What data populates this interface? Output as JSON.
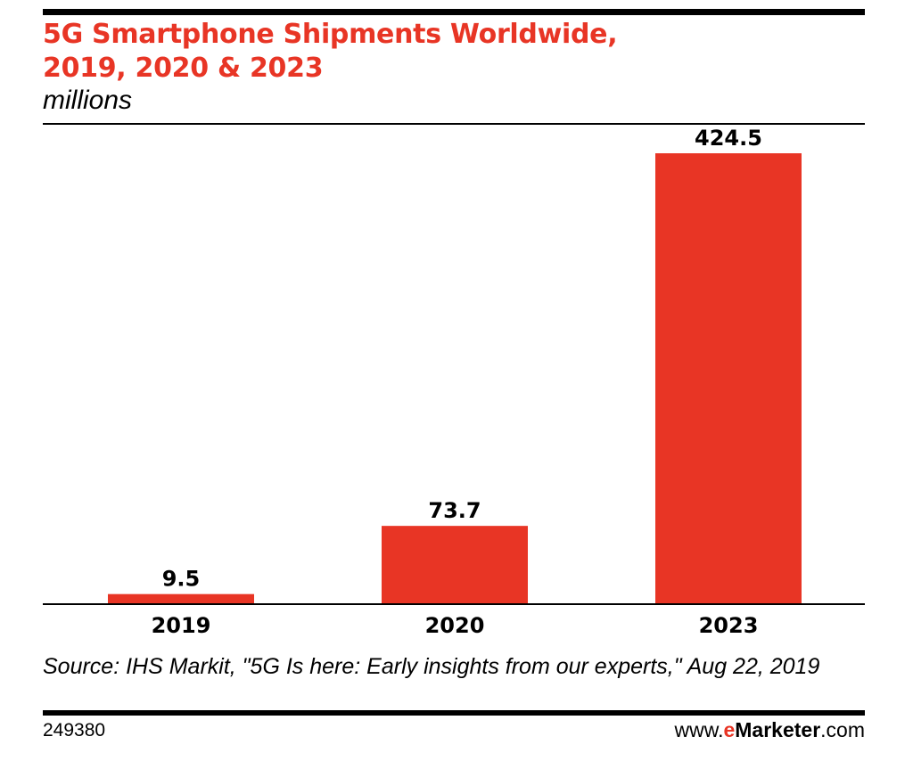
{
  "title_line1": "5G Smartphone Shipments Worldwide,",
  "title_line2": "2019, 2020 & 2023",
  "subtitle": "millions",
  "source": "Source: IHS Markit, \"5G Is here: Early insights from our experts,\" Aug 22, 2019",
  "chart_id": "249380",
  "brand": {
    "prefix": "www.",
    "e": "e",
    "name": "Marketer",
    "suffix": ".com"
  },
  "colors": {
    "accent": "#e83525",
    "text": "#000000",
    "background": "#ffffff"
  },
  "chart_data": {
    "type": "bar",
    "categories": [
      "2019",
      "2020",
      "2023"
    ],
    "values": [
      9.5,
      73.7,
      424.5
    ],
    "value_labels": [
      "9.5",
      "73.7",
      "424.5"
    ],
    "title": "5G Smartphone Shipments Worldwide, 2019, 2020 & 2023",
    "subtitle": "millions",
    "xlabel": "",
    "ylabel": "",
    "ylim": [
      0,
      424.5
    ],
    "grid": false,
    "legend": "none",
    "bar_color": "#e83525"
  }
}
